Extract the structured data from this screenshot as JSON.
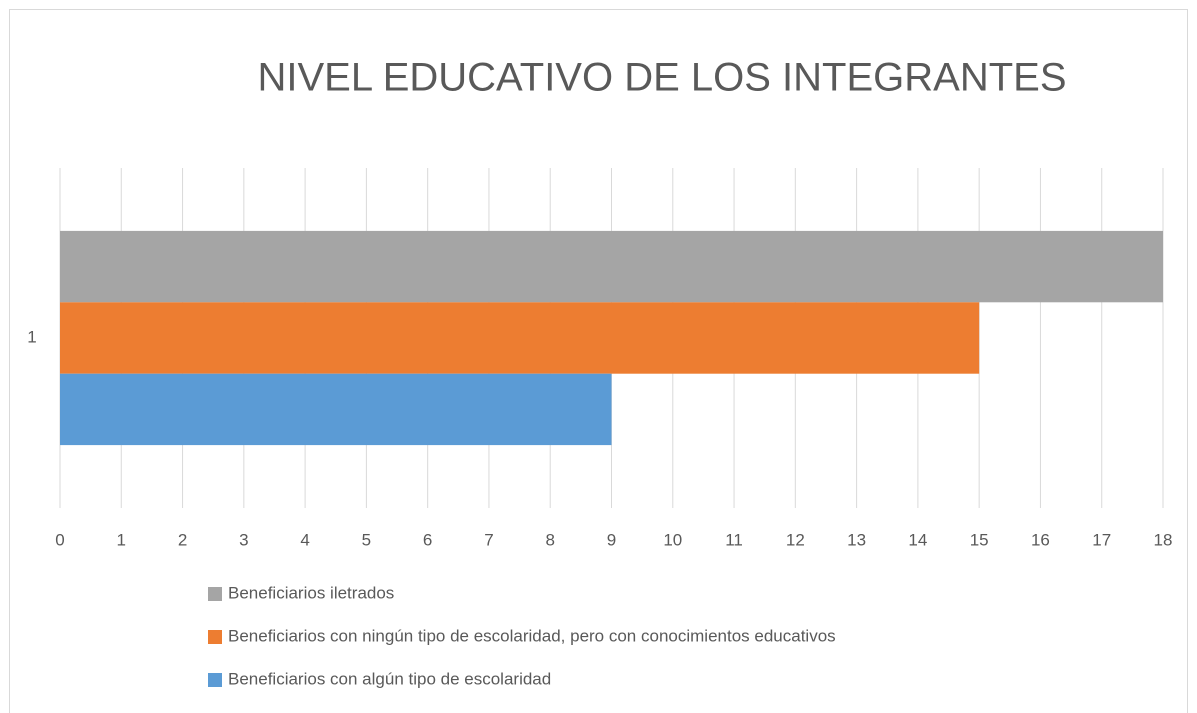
{
  "chart_data": {
    "type": "bar",
    "horizontal": true,
    "title": "NIVEL EDUCATIVO DE LOS INTEGRANTES",
    "categories": [
      "1"
    ],
    "series": [
      {
        "name": "Beneficiarios iletrados",
        "color": "#a5a5a5",
        "values": [
          18
        ]
      },
      {
        "name": "Beneficiarios con ningún tipo de escolaridad, pero con conocimientos educativos",
        "color": "#ed7d31",
        "values": [
          15
        ]
      },
      {
        "name": "Beneficiarios con algún tipo de escolaridad",
        "color": "#5b9bd5",
        "values": [
          9
        ]
      }
    ],
    "xlim": [
      0,
      18
    ],
    "xticks": [
      0,
      1,
      2,
      3,
      4,
      5,
      6,
      7,
      8,
      9,
      10,
      11,
      12,
      13,
      14,
      15,
      16,
      17,
      18
    ],
    "grid": true,
    "legend": "bottom"
  }
}
